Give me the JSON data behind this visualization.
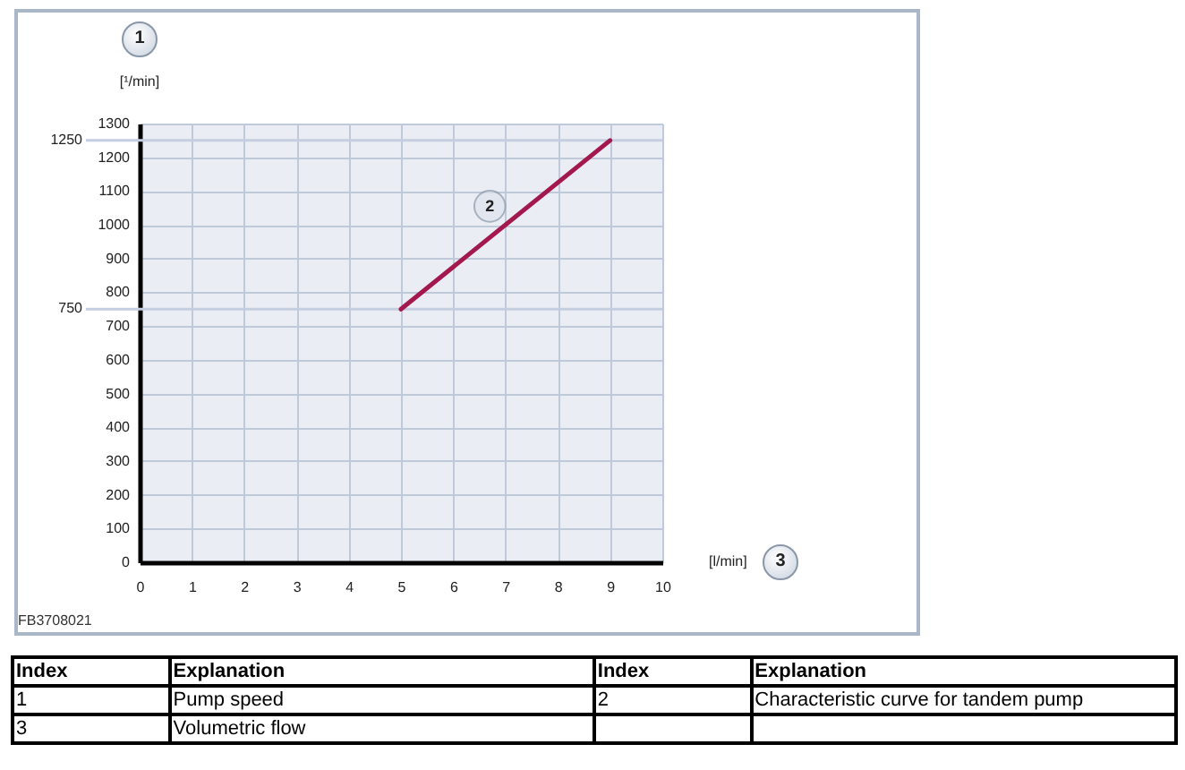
{
  "chart_data": {
    "type": "line",
    "xlabel": "[l/min]",
    "ylabel": "[¹/min]",
    "x": [
      5,
      9
    ],
    "series": [
      {
        "color": "#a3194d",
        "values": [
          750,
          1250
        ]
      }
    ],
    "xlim": [
      0,
      10
    ],
    "ylim": [
      0,
      1300
    ],
    "xticks": [
      0,
      1,
      2,
      3,
      4,
      5,
      6,
      7,
      8,
      9,
      10
    ],
    "yticks": [
      0,
      100,
      200,
      300,
      400,
      500,
      600,
      700,
      800,
      900,
      1000,
      1100,
      1200,
      1300
    ],
    "grid": true,
    "ref_lines": [
      {
        "axis": "y",
        "value": 750,
        "label": "750",
        "color": "#c5cde0"
      },
      {
        "axis": "y",
        "value": 1250,
        "label": "1250",
        "color": "#c5cde0"
      }
    ],
    "annotations": [
      "1",
      "3",
      "FB3708021",
      {
        "text": "2",
        "x": 6.7,
        "y": 1055
      },
      "Index",
      "Explanation",
      "Index",
      "Explanation",
      "1",
      "Pump speed",
      "2",
      "Characteristic curve for tandem pump",
      "3",
      "Volumetric flow"
    ]
  }
}
